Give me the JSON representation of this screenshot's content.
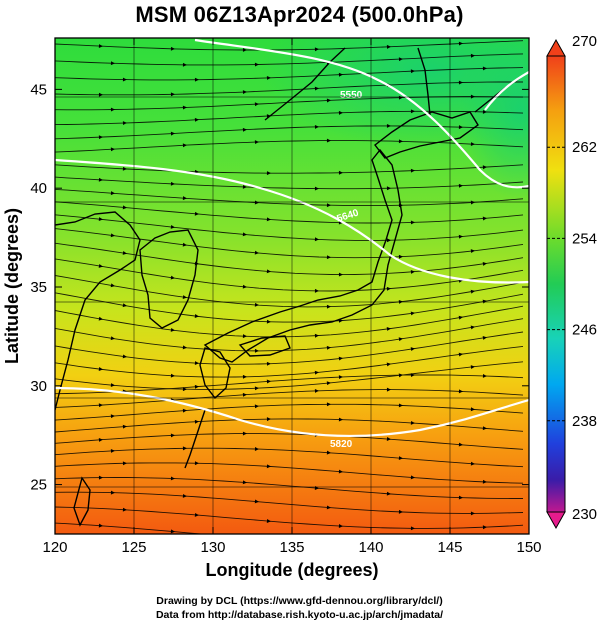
{
  "title": "MSM 06Z13Apr2024 (500.0hPa)",
  "xlabel": "Longitude (degrees)",
  "ylabel": "Latitude  (degrees)",
  "xlim": [
    120,
    150
  ],
  "ylim": [
    22.5,
    47.6
  ],
  "x_ticks": [
    "120",
    "125",
    "130",
    "135",
    "140",
    "145",
    "150"
  ],
  "y_ticks": [
    "25",
    "30",
    "35",
    "40",
    "45"
  ],
  "colorbar": {
    "min": 230,
    "max": 270,
    "labels": [
      "270",
      "262",
      "254",
      "246",
      "238",
      "230"
    ],
    "colors": [
      "#e51c8c",
      "#2020cc",
      "#00b4ff",
      "#22cc55",
      "#ffe000",
      "#ff3a10"
    ]
  },
  "contours": [
    {
      "label": "5550"
    },
    {
      "label": "5640"
    },
    {
      "label": "5820"
    }
  ],
  "credits": {
    "line1": "Drawing by DCL (https://www.gfd-dennou.org/library/dcl/)",
    "line2": "Data from http://database.rish.kyoto-u.ac.jp/arch/jmadata/"
  }
}
